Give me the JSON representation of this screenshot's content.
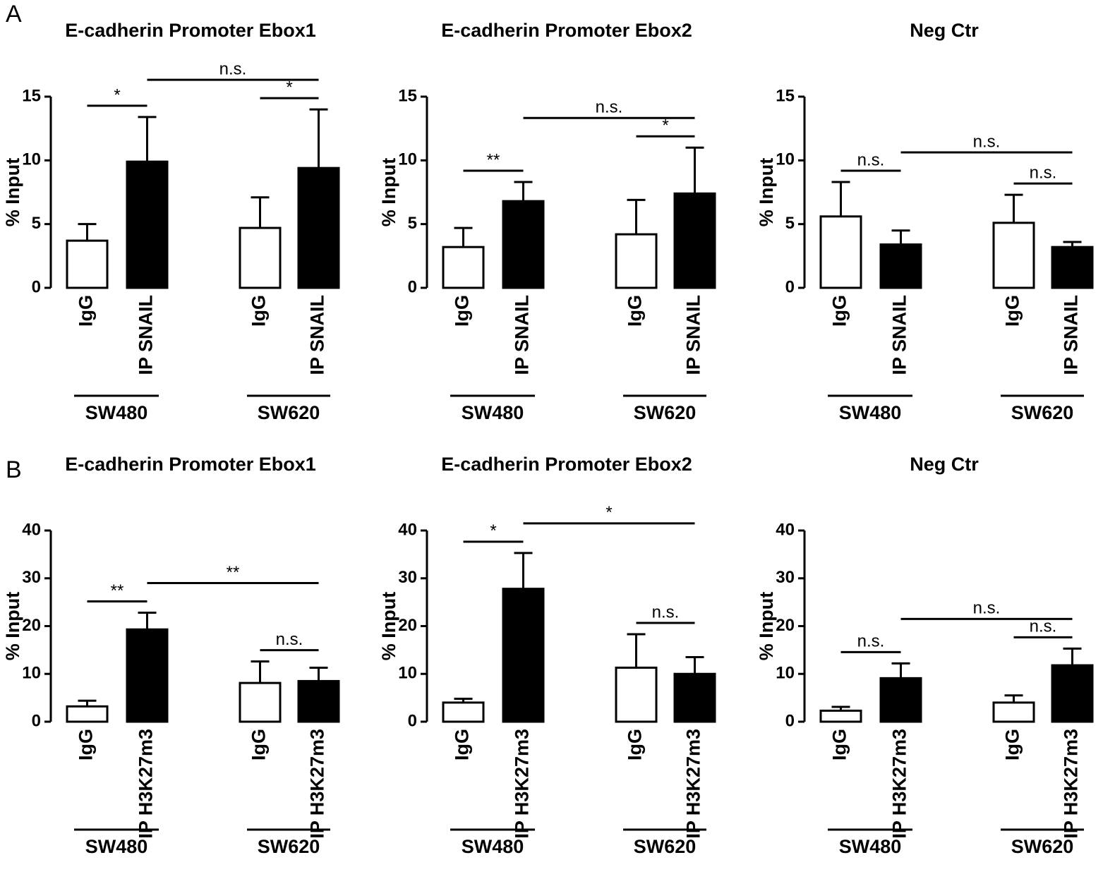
{
  "panels": [
    "A",
    "B"
  ],
  "chart_data": [
    {
      "type": "bar",
      "title": "E-cadherin Promoter Ebox1",
      "ylabel": "% Input",
      "categories": [
        "IgG",
        "IP SNAIL",
        "IgG",
        "IP SNAIL"
      ],
      "groups": [
        "SW480",
        "SW620"
      ],
      "values": [
        3.7,
        9.9,
        4.7,
        9.4
      ],
      "errors": [
        1.3,
        3.5,
        2.4,
        4.6
      ],
      "colors": [
        "#ffffff",
        "#000000",
        "#ffffff",
        "#000000"
      ],
      "ylim": [
        0,
        15
      ],
      "yticks": [
        0,
        5,
        10,
        15
      ],
      "brackets": [
        {
          "label": "*",
          "bars": [
            0,
            1
          ]
        },
        {
          "label": "*",
          "bars": [
            2,
            3
          ]
        },
        {
          "label": "n.s.",
          "bars": [
            1,
            3
          ]
        }
      ]
    },
    {
      "type": "bar",
      "title": "E-cadherin Promoter Ebox2",
      "ylabel": "% Input",
      "categories": [
        "IgG",
        "IP SNAIL",
        "IgG",
        "IP SNAIL"
      ],
      "groups": [
        "SW480",
        "SW620"
      ],
      "values": [
        3.2,
        6.8,
        4.2,
        7.4
      ],
      "errors": [
        1.5,
        1.5,
        2.7,
        3.6
      ],
      "colors": [
        "#ffffff",
        "#000000",
        "#ffffff",
        "#000000"
      ],
      "ylim": [
        0,
        15
      ],
      "yticks": [
        0,
        5,
        10,
        15
      ],
      "brackets": [
        {
          "label": "**",
          "bars": [
            0,
            1
          ]
        },
        {
          "label": "*",
          "bars": [
            2,
            3
          ]
        },
        {
          "label": "n.s.",
          "bars": [
            1,
            3
          ]
        }
      ]
    },
    {
      "type": "bar",
      "title": "Neg Ctr",
      "ylabel": "% Input",
      "categories": [
        "IgG",
        "IP SNAIL",
        "IgG",
        "IP SNAIL"
      ],
      "groups": [
        "SW480",
        "SW620"
      ],
      "values": [
        5.6,
        3.4,
        5.1,
        3.2
      ],
      "errors": [
        2.7,
        1.1,
        2.2,
        0.4
      ],
      "colors": [
        "#ffffff",
        "#000000",
        "#ffffff",
        "#000000"
      ],
      "ylim": [
        0,
        15
      ],
      "yticks": [
        0,
        5,
        10,
        15
      ],
      "brackets": [
        {
          "label": "n.s.",
          "bars": [
            0,
            1
          ]
        },
        {
          "label": "n.s.",
          "bars": [
            2,
            3
          ]
        },
        {
          "label": "n.s.",
          "bars": [
            1,
            3
          ]
        }
      ]
    },
    {
      "type": "bar",
      "title": "E-cadherin Promoter Ebox1",
      "ylabel": "% Input",
      "categories": [
        "IgG",
        "IP H3K27m3",
        "IgG",
        "IP H3K27m3"
      ],
      "groups": [
        "SW480",
        "SW620"
      ],
      "values": [
        3.2,
        19.3,
        8.1,
        8.5
      ],
      "errors": [
        1.2,
        3.5,
        4.5,
        2.8
      ],
      "colors": [
        "#ffffff",
        "#000000",
        "#ffffff",
        "#000000"
      ],
      "ylim": [
        0,
        40
      ],
      "yticks": [
        0,
        10,
        20,
        30,
        40
      ],
      "brackets": [
        {
          "label": "**",
          "bars": [
            0,
            1
          ]
        },
        {
          "label": "n.s.",
          "bars": [
            2,
            3
          ]
        },
        {
          "label": "**",
          "bars": [
            1,
            3
          ]
        }
      ]
    },
    {
      "type": "bar",
      "title": "E-cadherin Promoter Ebox2",
      "ylabel": "% Input",
      "categories": [
        "IgG",
        "IP H3K27m3",
        "IgG",
        "IP H3K27m3"
      ],
      "groups": [
        "SW480",
        "SW620"
      ],
      "values": [
        4.0,
        27.8,
        11.3,
        10.0
      ],
      "errors": [
        0.8,
        7.5,
        7.0,
        3.5
      ],
      "colors": [
        "#ffffff",
        "#000000",
        "#ffffff",
        "#000000"
      ],
      "ylim": [
        0,
        40
      ],
      "yticks": [
        0,
        10,
        20,
        30,
        40
      ],
      "brackets": [
        {
          "label": "*",
          "bars": [
            0,
            1
          ]
        },
        {
          "label": "n.s.",
          "bars": [
            2,
            3
          ]
        },
        {
          "label": "*",
          "bars": [
            1,
            3
          ]
        }
      ]
    },
    {
      "type": "bar",
      "title": "Neg Ctr",
      "ylabel": "% Input",
      "categories": [
        "IgG",
        "IP H3K27m3",
        "IgG",
        "IP H3K27m3"
      ],
      "groups": [
        "SW480",
        "SW620"
      ],
      "values": [
        2.3,
        9.1,
        4.0,
        11.8
      ],
      "errors": [
        0.8,
        3.1,
        1.5,
        3.5
      ],
      "colors": [
        "#ffffff",
        "#000000",
        "#ffffff",
        "#000000"
      ],
      "ylim": [
        0,
        40
      ],
      "yticks": [
        0,
        10,
        20,
        30,
        40
      ],
      "brackets": [
        {
          "label": "n.s.",
          "bars": [
            0,
            1
          ]
        },
        {
          "label": "n.s.",
          "bars": [
            2,
            3
          ]
        },
        {
          "label": "n.s.",
          "bars": [
            1,
            3
          ]
        }
      ]
    }
  ]
}
